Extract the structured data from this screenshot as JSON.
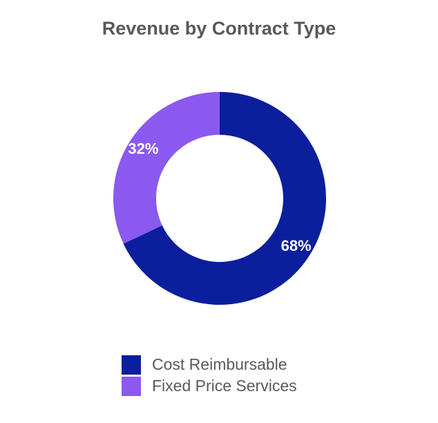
{
  "chart_data": {
    "type": "pie",
    "variant": "donut",
    "title": "Revenue by Contract Type",
    "categories": [
      "Cost Reimbursable",
      "Fixed Price Services"
    ],
    "values": [
      68,
      32
    ],
    "labels": [
      "68%",
      "32%"
    ],
    "colors": [
      "#0b1f9c",
      "#8b59ef"
    ],
    "start_angle_deg": 0,
    "direction": "clockwise",
    "legend_position": "bottom"
  }
}
